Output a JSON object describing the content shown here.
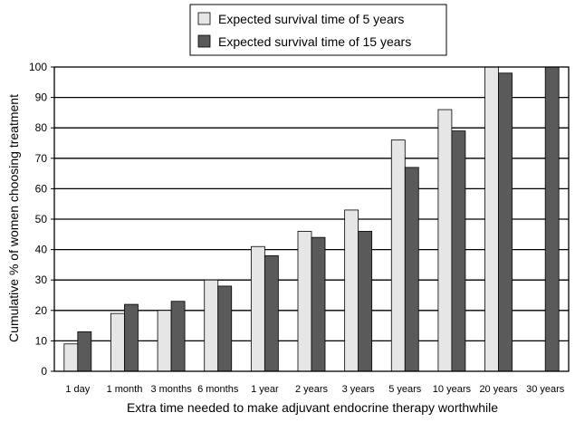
{
  "chart_data": {
    "type": "bar",
    "title": "",
    "xlabel": "Extra time needed to make adjuvant endocrine therapy worthwhile",
    "ylabel": "Cumulative % of women choosing treatment",
    "ylim": [
      0,
      100
    ],
    "yticks": [
      0,
      10,
      20,
      30,
      40,
      50,
      60,
      70,
      80,
      90,
      100
    ],
    "grid": true,
    "legend_position": "top-center",
    "categories": [
      "1 day",
      "1 month",
      "3 months",
      "6 months",
      "1 year",
      "2 years",
      "3 years",
      "5 years",
      "10 years",
      "20 years",
      "30 years"
    ],
    "series": [
      {
        "name": "Expected survival time of 5 years",
        "color": "#e6e6e6",
        "values": [
          9,
          19,
          20,
          30,
          41,
          46,
          53,
          76,
          86,
          100,
          null
        ]
      },
      {
        "name": "Expected survival time of 15 years",
        "color": "#5a5a5a",
        "values": [
          13,
          22,
          23,
          28,
          38,
          44,
          46,
          67,
          79,
          98,
          100
        ]
      }
    ]
  }
}
